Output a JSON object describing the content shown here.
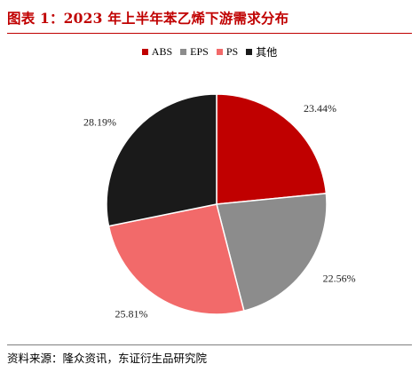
{
  "title": "图表 1：2023 年上半年苯乙烯下游需求分布",
  "source": "资料来源：隆众资讯，东证衍生品研究院",
  "chart_data": {
    "type": "pie",
    "title": "",
    "legend_position": "top",
    "slices": [
      {
        "label": "ABS",
        "value": 23.44,
        "display": "23.44%",
        "color": "#c00000"
      },
      {
        "label": "EPS",
        "value": 22.56,
        "display": "22.56%",
        "color": "#8c8c8c"
      },
      {
        "label": "PS",
        "value": 25.81,
        "display": "25.81%",
        "color": "#f26a6a"
      },
      {
        "label": "其他",
        "value": 28.19,
        "display": "28.19%",
        "color": "#1a1a1a"
      }
    ]
  }
}
